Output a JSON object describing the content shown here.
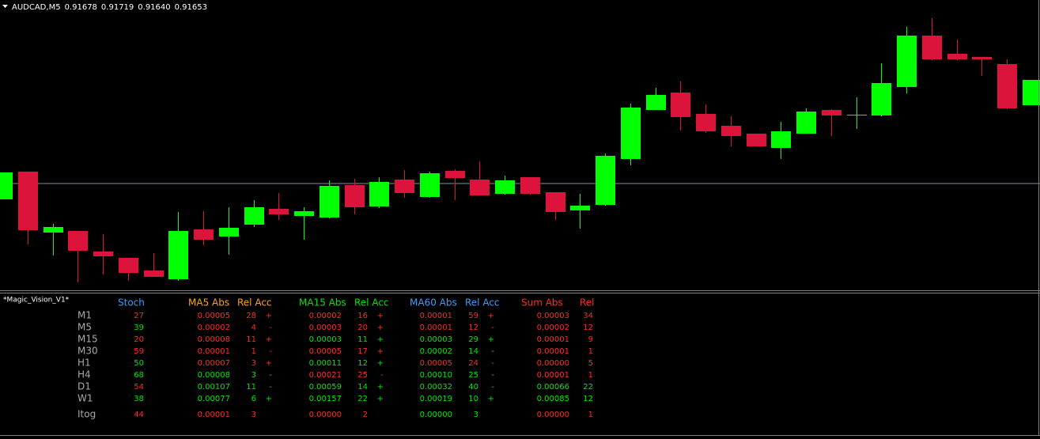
{
  "header": {
    "symbol": "AUDCAD,M5",
    "ohlc": [
      "0.91678",
      "0.91719",
      "0.91640",
      "0.91653"
    ]
  },
  "chart_data": {
    "type": "candlestick",
    "open": [
      0.91496,
      0.91566,
      0.91412,
      0.91416,
      0.91364,
      0.91348,
      0.91316,
      0.91294,
      0.9142,
      0.91402,
      0.91432,
      0.91472,
      0.91454,
      0.9145,
      0.91532,
      0.91478,
      0.91546,
      0.91502,
      0.91568,
      0.91546,
      0.9151,
      0.91552,
      0.91514,
      0.91468,
      0.91482,
      0.91598,
      0.91722,
      0.91766,
      0.91712,
      0.91682,
      0.91662,
      0.91626,
      0.91662,
      0.91722,
      0.91708,
      0.91708,
      0.9178,
      0.9191,
      0.91864,
      0.91856,
      0.91838,
      0.91734
    ],
    "high": [
      0.91564,
      0.91566,
      0.91434,
      0.91416,
      0.91408,
      0.91348,
      0.9136,
      0.91464,
      0.91466,
      0.91476,
      0.91494,
      0.91512,
      0.91476,
      0.91544,
      0.91548,
      0.91552,
      0.9157,
      0.91566,
      0.91572,
      0.91592,
      0.91556,
      0.91552,
      0.91514,
      0.9151,
      0.91612,
      0.91738,
      0.91778,
      0.91794,
      0.91736,
      0.91706,
      0.91662,
      0.91692,
      0.91726,
      0.91724,
      0.91754,
      0.9184,
      0.91932,
      0.91954,
      0.919,
      0.91856,
      0.9185,
      0.91798
    ],
    "low": [
      0.91496,
      0.91382,
      0.91354,
      0.91286,
      0.91306,
      0.9129,
      0.913,
      0.9129,
      0.9138,
      0.91356,
      0.91426,
      0.91444,
      0.91394,
      0.91448,
      0.91458,
      0.91474,
      0.915,
      0.915,
      0.91494,
      0.91506,
      0.91508,
      0.91508,
      0.91444,
      0.91422,
      0.9148,
      0.91582,
      0.91722,
      0.9167,
      0.91664,
      0.9163,
      0.9163,
      0.91598,
      0.91662,
      0.91656,
      0.91674,
      0.91706,
      0.91764,
      0.91848,
      0.91848,
      0.91808,
      0.91724,
      0.91734
    ],
    "close": [
      0.91564,
      0.91418,
      0.91426,
      0.91366,
      0.91352,
      0.9131,
      0.913,
      0.91416,
      0.91394,
      0.91424,
      0.91476,
      0.91458,
      0.91466,
      0.9153,
      0.91476,
      0.9154,
      0.91512,
      0.91562,
      0.9155,
      0.91506,
      0.91544,
      0.9151,
      0.91464,
      0.9148,
      0.91606,
      0.91728,
      0.9176,
      0.91704,
      0.91668,
      0.91656,
      0.9163,
      0.91668,
      0.91718,
      0.91708,
      0.9171,
      0.9179,
      0.9191,
      0.9185,
      0.9185,
      0.9185,
      0.91726,
      0.91798
    ],
    "up_color": "#00ff00",
    "down_color": "#dc143c",
    "price_line": 0.91536,
    "ylim": [
      0.9126,
      0.92
    ]
  },
  "indicator": {
    "name": "*Magic_Vision_V1*",
    "palette": {
      "r": "#ff2a2a",
      "g": "#00e600"
    },
    "columns": [
      {
        "text": "Stoch",
        "color": "#3c9cff"
      },
      {
        "text": "MA5 Abs",
        "color": "#ffa500"
      },
      {
        "text": "Rel Acc",
        "color": "#ffa500"
      },
      {
        "text": "MA15 Abs",
        "color": "#00e600"
      },
      {
        "text": "Rel Acc",
        "color": "#00e600"
      },
      {
        "text": "MA60 Abs",
        "color": "#3c9cff"
      },
      {
        "text": "Rel Acc",
        "color": "#3c9cff"
      },
      {
        "text": "Sum  Abs",
        "color": "#ff2a2a"
      },
      {
        "text": "Rel",
        "color": "#ff2a2a"
      }
    ],
    "rows": [
      {
        "label": "M1",
        "cells": [
          [
            "27",
            "r"
          ],
          [
            "0.00005",
            "r"
          ],
          [
            "28",
            "r"
          ],
          [
            "+",
            "r"
          ],
          [
            "0.00002",
            "r"
          ],
          [
            "16",
            "r"
          ],
          [
            "+",
            "r"
          ],
          [
            "0.00001",
            "r"
          ],
          [
            "59",
            "r"
          ],
          [
            "+",
            "r"
          ],
          [
            "0.00003",
            "r"
          ],
          [
            "34",
            "r"
          ]
        ]
      },
      {
        "label": "M5",
        "cells": [
          [
            "39",
            "g"
          ],
          [
            "0.00002",
            "r"
          ],
          [
            "4",
            "r"
          ],
          [
            "-",
            "r"
          ],
          [
            "0.00003",
            "r"
          ],
          [
            "20",
            "r"
          ],
          [
            "+",
            "r"
          ],
          [
            "0.00001",
            "r"
          ],
          [
            "12",
            "r"
          ],
          [
            "-",
            "r"
          ],
          [
            "0.00002",
            "r"
          ],
          [
            "12",
            "r"
          ]
        ]
      },
      {
        "label": "M15",
        "cells": [
          [
            "20",
            "r"
          ],
          [
            "0.00008",
            "r"
          ],
          [
            "11",
            "r"
          ],
          [
            "+",
            "r"
          ],
          [
            "0.00003",
            "g"
          ],
          [
            "11",
            "g"
          ],
          [
            "+",
            "g"
          ],
          [
            "0.00003",
            "g"
          ],
          [
            "29",
            "g"
          ],
          [
            "+",
            "g"
          ],
          [
            "0.00001",
            "r"
          ],
          [
            "9",
            "r"
          ]
        ]
      },
      {
        "label": "M30",
        "cells": [
          [
            "59",
            "r"
          ],
          [
            "0.00001",
            "r"
          ],
          [
            "1",
            "r"
          ],
          [
            "-",
            "r"
          ],
          [
            "0.00005",
            "r"
          ],
          [
            "17",
            "r"
          ],
          [
            "+",
            "r"
          ],
          [
            "0.00002",
            "g"
          ],
          [
            "14",
            "g"
          ],
          [
            "-",
            "g"
          ],
          [
            "0.00001",
            "r"
          ],
          [
            "1",
            "r"
          ]
        ]
      },
      {
        "label": "H1",
        "cells": [
          [
            "50",
            "g"
          ],
          [
            "0.00007",
            "r"
          ],
          [
            "3",
            "r"
          ],
          [
            "+",
            "r"
          ],
          [
            "0.00011",
            "g"
          ],
          [
            "12",
            "g"
          ],
          [
            "+",
            "g"
          ],
          [
            "0.00005",
            "r"
          ],
          [
            "24",
            "r"
          ],
          [
            "-",
            "r"
          ],
          [
            "0.00000",
            "r"
          ],
          [
            "5",
            "r"
          ]
        ]
      },
      {
        "label": "H4",
        "cells": [
          [
            "68",
            "g"
          ],
          [
            "0.00008",
            "g"
          ],
          [
            "3",
            "g"
          ],
          [
            "-",
            "g"
          ],
          [
            "0.00021",
            "r"
          ],
          [
            "25",
            "r"
          ],
          [
            "-",
            "r"
          ],
          [
            "0.00010",
            "g"
          ],
          [
            "25",
            "g"
          ],
          [
            "-",
            "g"
          ],
          [
            "0.00001",
            "r"
          ],
          [
            "1",
            "r"
          ]
        ]
      },
      {
        "label": "D1",
        "cells": [
          [
            "54",
            "r"
          ],
          [
            "0.00107",
            "g"
          ],
          [
            "11",
            "g"
          ],
          [
            "-",
            "g"
          ],
          [
            "0.00059",
            "g"
          ],
          [
            "14",
            "g"
          ],
          [
            "+",
            "g"
          ],
          [
            "0.00032",
            "g"
          ],
          [
            "40",
            "g"
          ],
          [
            "-",
            "g"
          ],
          [
            "0.00066",
            "g"
          ],
          [
            "22",
            "g"
          ]
        ]
      },
      {
        "label": "W1",
        "cells": [
          [
            "38",
            "g"
          ],
          [
            "0.00077",
            "g"
          ],
          [
            "6",
            "g"
          ],
          [
            "+",
            "g"
          ],
          [
            "0.00157",
            "g"
          ],
          [
            "22",
            "g"
          ],
          [
            "+",
            "g"
          ],
          [
            "0.00019",
            "g"
          ],
          [
            "10",
            "g"
          ],
          [
            "+",
            "g"
          ],
          [
            "0.00085",
            "g"
          ],
          [
            "12",
            "g"
          ]
        ]
      },
      {
        "label": "Itog",
        "cells": [
          [
            "44",
            "r"
          ],
          [
            "0.00001",
            "r"
          ],
          [
            "3",
            "r"
          ],
          null,
          [
            "0.00000",
            "r"
          ],
          [
            "2",
            "r"
          ],
          null,
          [
            "0.00000",
            "g"
          ],
          [
            "3",
            "g"
          ],
          null,
          [
            "0.00000",
            "r"
          ],
          [
            "1",
            "r"
          ]
        ]
      }
    ]
  }
}
